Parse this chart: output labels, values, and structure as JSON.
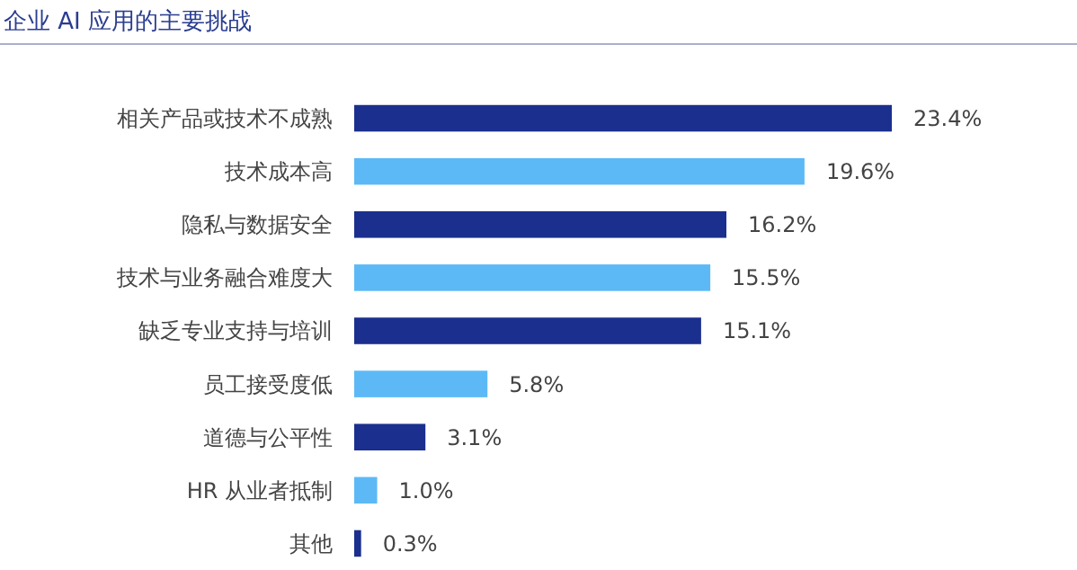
{
  "chart_data": {
    "type": "bar",
    "orientation": "horizontal",
    "title": "企业 AI 应用的主要挑战",
    "categories": [
      "相关产品或技术不成熟",
      "技术成本高",
      "隐私与数据安全",
      "技术与业务融合难度大",
      "缺乏专业支持与培训",
      "员工接受度低",
      "道德与公平性",
      "HR 从业者抵制",
      "其他"
    ],
    "values": [
      23.4,
      19.6,
      16.2,
      15.5,
      15.1,
      5.8,
      3.1,
      1.0,
      0.3
    ],
    "colors": [
      "#1b2f8e",
      "#5cb9f6",
      "#1b2f8e",
      "#5cb9f6",
      "#1b2f8e",
      "#5cb9f6",
      "#1b2f8e",
      "#5cb9f6",
      "#1b2f8e"
    ],
    "value_labels": [
      "23.4%",
      "19.6%",
      "16.2%",
      "15.5%",
      "15.1%",
      "5.8%",
      "3.1%",
      "1.0%",
      "0.3%"
    ]
  }
}
